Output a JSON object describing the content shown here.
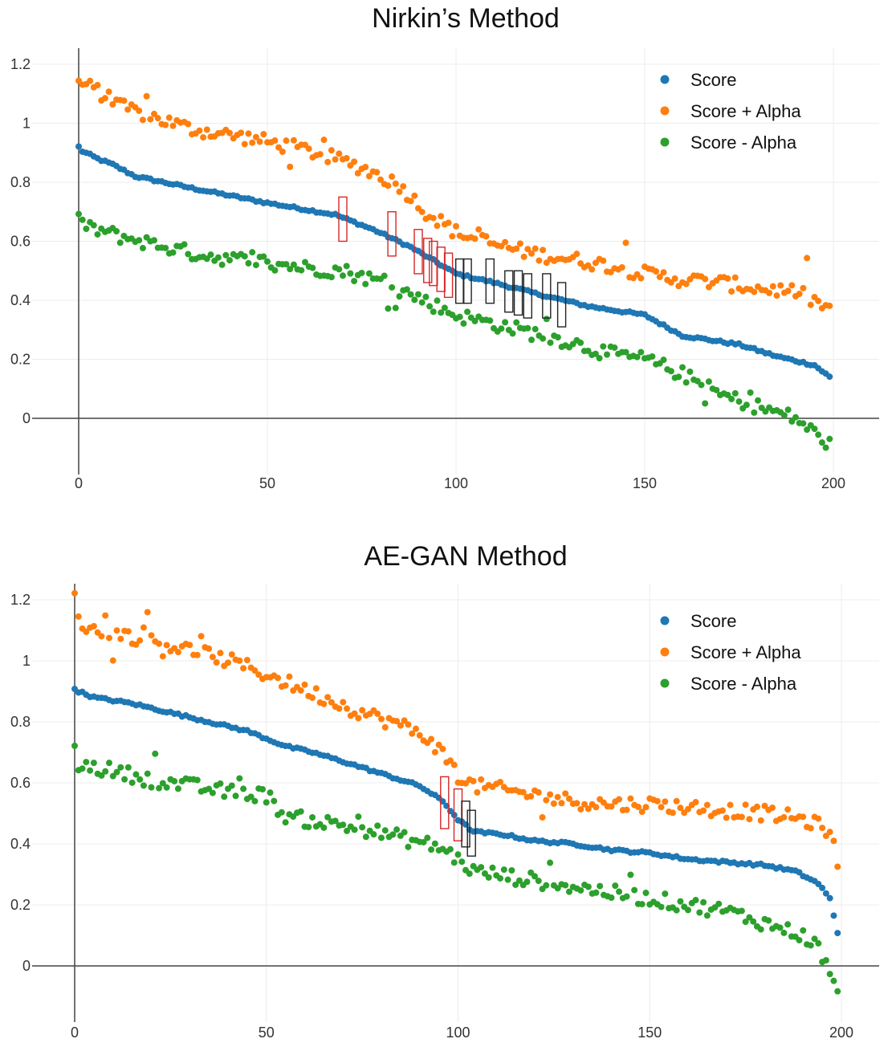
{
  "chart_data": [
    {
      "type": "scatter",
      "title": "Nirkin’s Method",
      "xlabel": "",
      "ylabel": "",
      "xlim": [
        0,
        200
      ],
      "ylim": [
        -0.1,
        1.2
      ],
      "x_ticks": [
        "0",
        "50",
        "100",
        "150",
        "200"
      ],
      "y_ticks": [
        "0",
        "0.2",
        "0.4",
        "0.6",
        "0.8",
        "1",
        "1.2"
      ],
      "grid": true,
      "legend_position": "top-right",
      "n_points": 200,
      "series": [
        {
          "name": "Score",
          "color": "#1f77b4",
          "profile": [
            [
              0,
              0.92
            ],
            [
              1,
              0.905
            ],
            [
              5,
              0.88
            ],
            [
              9,
              0.86
            ],
            [
              15,
              0.82
            ],
            [
              30,
              0.78
            ],
            [
              50,
              0.73
            ],
            [
              68,
              0.69
            ],
            [
              78,
              0.64
            ],
            [
              88,
              0.58
            ],
            [
              100,
              0.49
            ],
            [
              110,
              0.46
            ],
            [
              122,
              0.42
            ],
            [
              135,
              0.38
            ],
            [
              150,
              0.35
            ],
            [
              160,
              0.28
            ],
            [
              175,
              0.25
            ],
            [
              185,
              0.21
            ],
            [
              195,
              0.18
            ],
            [
              199,
              0.14
            ]
          ]
        },
        {
          "name": "Score + Alpha",
          "color": "#ff7f0e",
          "profile": [
            [
              0,
              1.14
            ],
            [
              5,
              1.11
            ],
            [
              10,
              1.06
            ],
            [
              20,
              1.02
            ],
            [
              30,
              0.98
            ],
            [
              45,
              0.95
            ],
            [
              60,
              0.91
            ],
            [
              68,
              0.88
            ],
            [
              75,
              0.85
            ],
            [
              85,
              0.79
            ],
            [
              92,
              0.7
            ],
            [
              100,
              0.63
            ],
            [
              110,
              0.59
            ],
            [
              120,
              0.56
            ],
            [
              130,
              0.54
            ],
            [
              140,
              0.52
            ],
            [
              150,
              0.49
            ],
            [
              160,
              0.47
            ],
            [
              170,
              0.46
            ],
            [
              180,
              0.44
            ],
            [
              190,
              0.43
            ],
            [
              199,
              0.37
            ]
          ]
        },
        {
          "name": "Score - Alpha",
          "color": "#2ca02c",
          "profile": [
            [
              0,
              0.7
            ],
            [
              1,
              0.65
            ],
            [
              5,
              0.64
            ],
            [
              10,
              0.62
            ],
            [
              20,
              0.59
            ],
            [
              30,
              0.56
            ],
            [
              40,
              0.54
            ],
            [
              50,
              0.53
            ],
            [
              60,
              0.51
            ],
            [
              70,
              0.5
            ],
            [
              78,
              0.47
            ],
            [
              88,
              0.42
            ],
            [
              100,
              0.35
            ],
            [
              110,
              0.32
            ],
            [
              120,
              0.29
            ],
            [
              130,
              0.26
            ],
            [
              140,
              0.22
            ],
            [
              150,
              0.2
            ],
            [
              160,
              0.15
            ],
            [
              170,
              0.08
            ],
            [
              180,
              0.04
            ],
            [
              190,
              0.0
            ],
            [
              199,
              -0.09
            ]
          ]
        }
      ],
      "annotations": [
        {
          "color": "#d62728",
          "x": 70,
          "y_low": 0.6,
          "y_high": 0.75
        },
        {
          "color": "#d62728",
          "x": 83,
          "y_low": 0.55,
          "y_high": 0.7
        },
        {
          "color": "#d62728",
          "x": 90,
          "y_low": 0.49,
          "y_high": 0.64
        },
        {
          "color": "#d62728",
          "x": 92.5,
          "y_low": 0.46,
          "y_high": 0.61
        },
        {
          "color": "#d62728",
          "x": 94,
          "y_low": 0.45,
          "y_high": 0.6
        },
        {
          "color": "#d62728",
          "x": 96,
          "y_low": 0.43,
          "y_high": 0.58
        },
        {
          "color": "#d62728",
          "x": 98,
          "y_low": 0.41,
          "y_high": 0.56
        },
        {
          "color": "#222222",
          "x": 101,
          "y_low": 0.39,
          "y_high": 0.54
        },
        {
          "color": "#222222",
          "x": 103,
          "y_low": 0.39,
          "y_high": 0.54
        },
        {
          "color": "#222222",
          "x": 109,
          "y_low": 0.39,
          "y_high": 0.54
        },
        {
          "color": "#222222",
          "x": 114,
          "y_low": 0.36,
          "y_high": 0.5
        },
        {
          "color": "#222222",
          "x": 116.5,
          "y_low": 0.35,
          "y_high": 0.5
        },
        {
          "color": "#222222",
          "x": 119,
          "y_low": 0.34,
          "y_high": 0.49
        },
        {
          "color": "#222222",
          "x": 124,
          "y_low": 0.34,
          "y_high": 0.49
        },
        {
          "color": "#222222",
          "x": 128,
          "y_low": 0.31,
          "y_high": 0.46
        }
      ]
    },
    {
      "type": "scatter",
      "title": "AE-GAN Method",
      "xlabel": "",
      "ylabel": "",
      "xlim": [
        0,
        200
      ],
      "ylim": [
        -0.1,
        1.2
      ],
      "x_ticks": [
        "0",
        "50",
        "100",
        "150",
        "200"
      ],
      "y_ticks": [
        "0",
        "0.2",
        "0.4",
        "0.6",
        "0.8",
        "1",
        "1.2"
      ],
      "grid": true,
      "legend_position": "top-right",
      "n_points": 200,
      "series": [
        {
          "name": "Score",
          "color": "#1f77b4",
          "profile": [
            [
              0,
              0.91
            ],
            [
              1,
              0.9
            ],
            [
              5,
              0.88
            ],
            [
              15,
              0.86
            ],
            [
              25,
              0.83
            ],
            [
              35,
              0.8
            ],
            [
              45,
              0.77
            ],
            [
              55,
              0.72
            ],
            [
              62,
              0.7
            ],
            [
              70,
              0.67
            ],
            [
              80,
              0.63
            ],
            [
              90,
              0.59
            ],
            [
              96,
              0.54
            ],
            [
              100,
              0.48
            ],
            [
              104,
              0.44
            ],
            [
              112,
              0.43
            ],
            [
              120,
              0.41
            ],
            [
              130,
              0.4
            ],
            [
              140,
              0.38
            ],
            [
              150,
              0.37
            ],
            [
              160,
              0.35
            ],
            [
              170,
              0.34
            ],
            [
              180,
              0.33
            ],
            [
              188,
              0.31
            ],
            [
              194,
              0.27
            ],
            [
              197,
              0.22
            ],
            [
              199,
              0.11
            ]
          ]
        },
        {
          "name": "Score + Alpha",
          "color": "#ff7f0e",
          "profile": [
            [
              0,
              1.13
            ],
            [
              5,
              1.1
            ],
            [
              15,
              1.08
            ],
            [
              25,
              1.05
            ],
            [
              35,
              1.02
            ],
            [
              45,
              0.98
            ],
            [
              55,
              0.93
            ],
            [
              65,
              0.88
            ],
            [
              75,
              0.83
            ],
            [
              85,
              0.79
            ],
            [
              93,
              0.74
            ],
            [
              100,
              0.63
            ],
            [
              104,
              0.59
            ],
            [
              110,
              0.58
            ],
            [
              120,
              0.56
            ],
            [
              130,
              0.54
            ],
            [
              140,
              0.53
            ],
            [
              150,
              0.53
            ],
            [
              160,
              0.52
            ],
            [
              170,
              0.51
            ],
            [
              180,
              0.5
            ],
            [
              190,
              0.48
            ],
            [
              196,
              0.45
            ],
            [
              198,
              0.4
            ],
            [
              199,
              0.32
            ]
          ]
        },
        {
          "name": "Score - Alpha",
          "color": "#2ca02c",
          "profile": [
            [
              0,
              0.7
            ],
            [
              1,
              0.66
            ],
            [
              10,
              0.64
            ],
            [
              20,
              0.61
            ],
            [
              30,
              0.59
            ],
            [
              40,
              0.57
            ],
            [
              50,
              0.56
            ],
            [
              55,
              0.49
            ],
            [
              65,
              0.47
            ],
            [
              75,
              0.45
            ],
            [
              85,
              0.42
            ],
            [
              95,
              0.39
            ],
            [
              100,
              0.35
            ],
            [
              104,
              0.31
            ],
            [
              110,
              0.3
            ],
            [
              120,
              0.28
            ],
            [
              130,
              0.26
            ],
            [
              140,
              0.24
            ],
            [
              150,
              0.22
            ],
            [
              160,
              0.2
            ],
            [
              170,
              0.18
            ],
            [
              180,
              0.14
            ],
            [
              190,
              0.1
            ],
            [
              195,
              0.05
            ],
            [
              199,
              -0.1
            ]
          ]
        }
      ],
      "annotations": [
        {
          "color": "#d62728",
          "x": 96.5,
          "y_low": 0.45,
          "y_high": 0.62
        },
        {
          "color": "#d62728",
          "x": 100,
          "y_low": 0.41,
          "y_high": 0.58
        },
        {
          "color": "#222222",
          "x": 102,
          "y_low": 0.39,
          "y_high": 0.54
        },
        {
          "color": "#222222",
          "x": 103.5,
          "y_low": 0.36,
          "y_high": 0.51
        }
      ]
    }
  ]
}
